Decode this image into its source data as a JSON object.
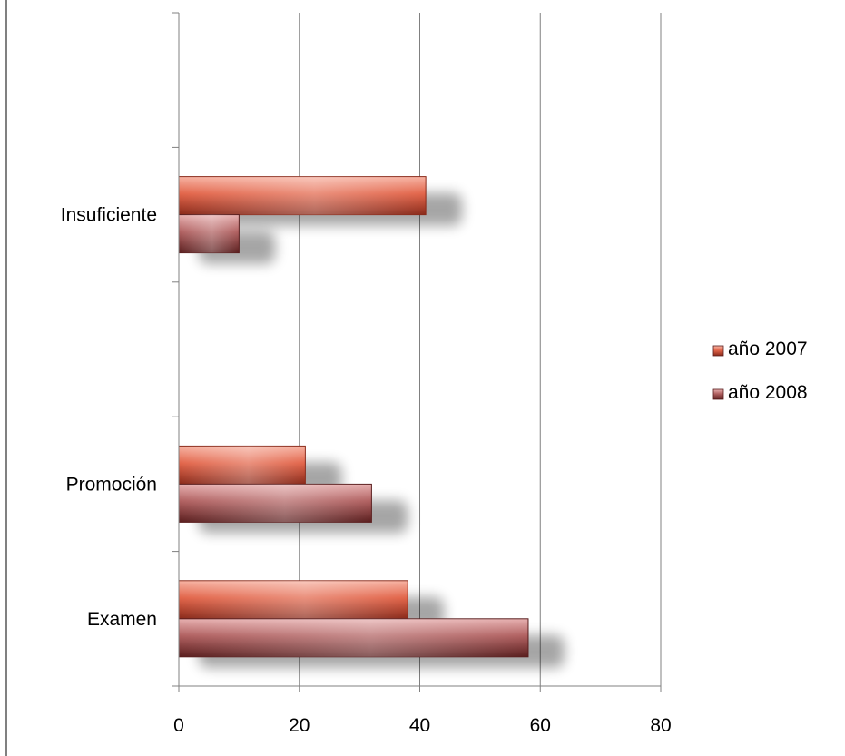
{
  "chart_data": {
    "type": "bar",
    "orientation": "horizontal",
    "categories": [
      "Examen",
      "Promoción",
      "",
      "Insuficiente",
      ""
    ],
    "series": [
      {
        "name": "año 2007",
        "values": [
          38,
          21,
          null,
          41,
          null
        ],
        "color": "#d9533a"
      },
      {
        "name": "año 2008",
        "values": [
          58,
          32,
          null,
          10,
          null
        ],
        "color": "#a04848"
      }
    ],
    "x_ticks": [
      0,
      20,
      40,
      60,
      80
    ],
    "xlim": [
      0,
      80
    ],
    "grid": "vertical",
    "legend": "right"
  }
}
